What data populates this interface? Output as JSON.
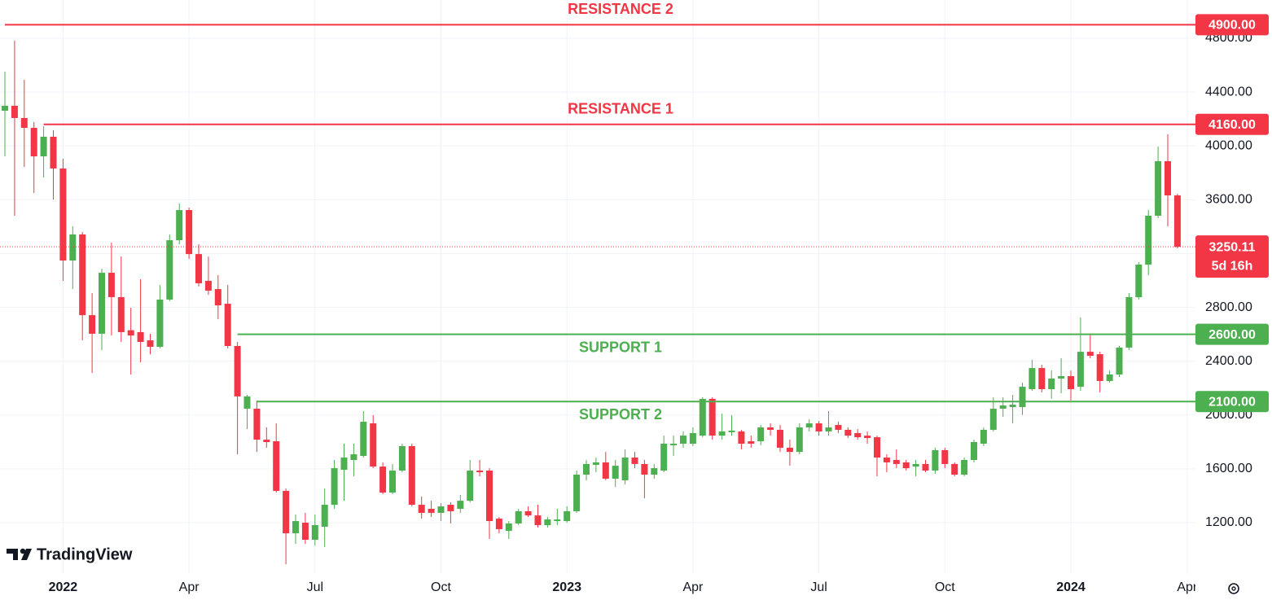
{
  "chart_data": {
    "type": "candlestick",
    "categories": [
      null,
      null,
      null,
      null,
      null,
      null,
      "2022",
      null,
      null,
      null,
      null,
      null,
      null,
      null,
      null,
      null,
      null,
      null,
      null,
      "Apr",
      null,
      null,
      null,
      null,
      null,
      null,
      null,
      null,
      null,
      null,
      null,
      null,
      "Jul",
      null,
      null,
      null,
      null,
      null,
      null,
      null,
      null,
      null,
      null,
      null,
      null,
      "Oct",
      null,
      null,
      null,
      null,
      null,
      null,
      null,
      null,
      null,
      null,
      null,
      null,
      "2023",
      null,
      null,
      null,
      null,
      null,
      null,
      null,
      null,
      null,
      null,
      null,
      null,
      "Apr",
      null,
      null,
      null,
      null,
      null,
      null,
      null,
      null,
      null,
      null,
      null,
      null,
      "Jul",
      null,
      null,
      null,
      null,
      null,
      null,
      null,
      null,
      null,
      null,
      null,
      null,
      "Oct",
      null,
      null,
      null,
      null,
      null,
      null,
      null,
      null,
      null,
      null,
      null,
      null,
      "2024",
      null,
      null,
      null,
      null,
      null,
      null,
      null,
      null,
      null,
      null,
      null,
      "Apr"
    ],
    "open": [
      4261,
      4298,
      4207,
      4134,
      3922,
      4068,
      3832,
      3148,
      3342,
      2742,
      2604,
      3057,
      2876,
      2630,
      2616,
      2555,
      2507,
      2858,
      3299,
      3523,
      3196,
      2997,
      2936,
      2827,
      2513,
      2047,
      2047,
      1817,
      1805,
      1436,
      1121,
      1200,
      1073,
      1170,
      1333,
      1593,
      1666,
      1696,
      1938,
      1617,
      1424,
      1587,
      1769,
      1333,
      1303,
      1273,
      1333,
      1303,
      1363,
      1587,
      1587,
      1230,
      1139,
      1194,
      1285,
      1254,
      1182,
      1212,
      1212,
      1285,
      1557,
      1630,
      1648,
      1527,
      1515,
      1684,
      1636,
      1557,
      1587,
      1775,
      1787,
      1787,
      1847,
      2120,
      1847,
      1872,
      1878,
      1805,
      1805,
      1908,
      1890,
      1757,
      1726,
      1908,
      1938,
      1878,
      1926,
      1890,
      1866,
      1847,
      1835,
      1684,
      1666,
      1648,
      1617,
      1636,
      1587,
      1739,
      1636,
      1557,
      1666,
      1787,
      1890,
      2047,
      2059,
      2059,
      2192,
      2349,
      2192,
      2271,
      2289,
      2210,
      2470,
      2452,
      2253,
      2301,
      2501,
      2876,
      3118,
      3481,
      3886,
      3632,
      null
    ],
    "high": [
      4552,
      4782,
      4491,
      4177,
      4146,
      4116,
      3904,
      3402,
      3360,
      2906,
      3087,
      3281,
      3178,
      2797,
      3009,
      2604,
      2967,
      3342,
      3572,
      3541,
      3269,
      3178,
      3039,
      2967,
      2543,
      2150,
      2108,
      1908,
      1938,
      1454,
      1260,
      1273,
      1260,
      1454,
      1666,
      1787,
      1787,
      2029,
      1999,
      1648,
      1636,
      1787,
      1787,
      1394,
      1363,
      1345,
      1351,
      1406,
      1666,
      1666,
      1605,
      1242,
      1212,
      1303,
      1321,
      1333,
      1242,
      1303,
      1321,
      1587,
      1666,
      1684,
      1726,
      1666,
      1745,
      1726,
      1666,
      1636,
      1847,
      1847,
      1878,
      1908,
      2132,
      2132,
      2011,
      1999,
      1890,
      1847,
      1926,
      1938,
      1926,
      1817,
      1938,
      1968,
      1956,
      2029,
      1950,
      1908,
      1896,
      1878,
      1847,
      1708,
      1745,
      1666,
      1666,
      1666,
      1757,
      1757,
      1648,
      1684,
      1817,
      1908,
      2132,
      2132,
      2150,
      2240,
      2410,
      2374,
      2331,
      2422,
      2331,
      2725,
      2604,
      2470,
      2331,
      2513,
      2906,
      3136,
      3523,
      3995,
      4086,
      3644,
      null
    ],
    "low": [
      3922,
      3481,
      3844,
      3650,
      3765,
      3601,
      2997,
      2936,
      2555,
      2313,
      2483,
      2591,
      2543,
      2301,
      2392,
      2452,
      2495,
      2846,
      3269,
      3160,
      2955,
      2894,
      2712,
      2495,
      1708,
      1896,
      1726,
      1757,
      1424,
      891,
      1043,
      1043,
      1031,
      1018,
      1303,
      1363,
      1545,
      1684,
      1605,
      1412,
      1412,
      1575,
      1321,
      1230,
      1242,
      1212,
      1194,
      1273,
      1351,
      1545,
      1079,
      1121,
      1079,
      1182,
      1242,
      1164,
      1164,
      1182,
      1200,
      1273,
      1515,
      1575,
      1515,
      1466,
      1484,
      1605,
      1382,
      1527,
      1575,
      1696,
      1757,
      1769,
      1835,
      1817,
      1817,
      1847,
      1745,
      1757,
      1775,
      1847,
      1726,
      1624,
      1708,
      1878,
      1847,
      1847,
      1866,
      1829,
      1817,
      1787,
      1545,
      1575,
      1605,
      1587,
      1545,
      1575,
      1563,
      1605,
      1545,
      1545,
      1648,
      1769,
      1878,
      1987,
      1938,
      2000,
      2180,
      2168,
      2120,
      2162,
      2108,
      2180,
      2422,
      2168,
      2241,
      2283,
      2483,
      2858,
      3039,
      3463,
      3402,
      3239,
      null
    ],
    "close": [
      4298,
      4207,
      4134,
      3922,
      4068,
      3832,
      3148,
      3342,
      2742,
      2604,
      3057,
      2876,
      2616,
      2591,
      2543,
      2507,
      2858,
      3299,
      3523,
      3196,
      2979,
      2924,
      2815,
      2513,
      2138,
      2138,
      1817,
      1799,
      1436,
      1121,
      1212,
      1073,
      1182,
      1333,
      1605,
      1684,
      1708,
      1950,
      1617,
      1424,
      1587,
      1769,
      1333,
      1273,
      1273,
      1321,
      1285,
      1363,
      1587,
      1575,
      1212,
      1152,
      1194,
      1285,
      1254,
      1182,
      1224,
      1224,
      1285,
      1557,
      1636,
      1648,
      1527,
      1623,
      1684,
      1636,
      1557,
      1605,
      1787,
      1787,
      1847,
      1866,
      2120,
      1847,
      1878,
      1884,
      1787,
      1787,
      1908,
      1890,
      1757,
      1726,
      1908,
      1938,
      1878,
      1908,
      1890,
      1847,
      1835,
      1829,
      1684,
      1648,
      1636,
      1605,
      1636,
      1587,
      1739,
      1636,
      1557,
      1666,
      1799,
      1890,
      2047,
      2071,
      2077,
      2210,
      2349,
      2192,
      2271,
      2289,
      2192,
      2470,
      2440,
      2253,
      2301,
      2501,
      2876,
      3118,
      3481,
      3886,
      3632,
      3250.11,
      null
    ],
    "up_color": "#4caf50",
    "down_color": "#f23645",
    "ylim": [
      819,
      5084
    ],
    "yticks": [
      {
        "value": 1200,
        "label": "1200.00"
      },
      {
        "value": 1600,
        "label": "1600.00"
      },
      {
        "value": 2000,
        "label": "2000.00"
      },
      {
        "value": 2400,
        "label": "2400.00"
      },
      {
        "value": 2800,
        "label": "2800.00"
      },
      {
        "value": 3200,
        "label": "3200.00"
      },
      {
        "value": 3600,
        "label": "3600.00"
      },
      {
        "value": 4000,
        "label": "4000.00"
      },
      {
        "value": 4400,
        "label": "4400.00"
      },
      {
        "value": 4800,
        "label": "4800.00"
      }
    ],
    "grid": true,
    "levels": [
      {
        "name": "RESISTANCE 2",
        "value": 4900,
        "label": "4900.00",
        "color": "#f23645",
        "start": 0
      },
      {
        "name": "RESISTANCE 1",
        "value": 4160,
        "label": "4160.00",
        "color": "#f23645",
        "start": 4
      },
      {
        "name": "SUPPORT 1",
        "value": 2600,
        "label": "2600.00",
        "color": "#4caf50",
        "start": 24
      },
      {
        "name": "SUPPORT 2",
        "value": 2100,
        "label": "2100.00",
        "color": "#4caf50",
        "start": 26
      }
    ],
    "last_price": 3250.11,
    "countdown": "5d 16h",
    "watermark": "TradingView"
  }
}
